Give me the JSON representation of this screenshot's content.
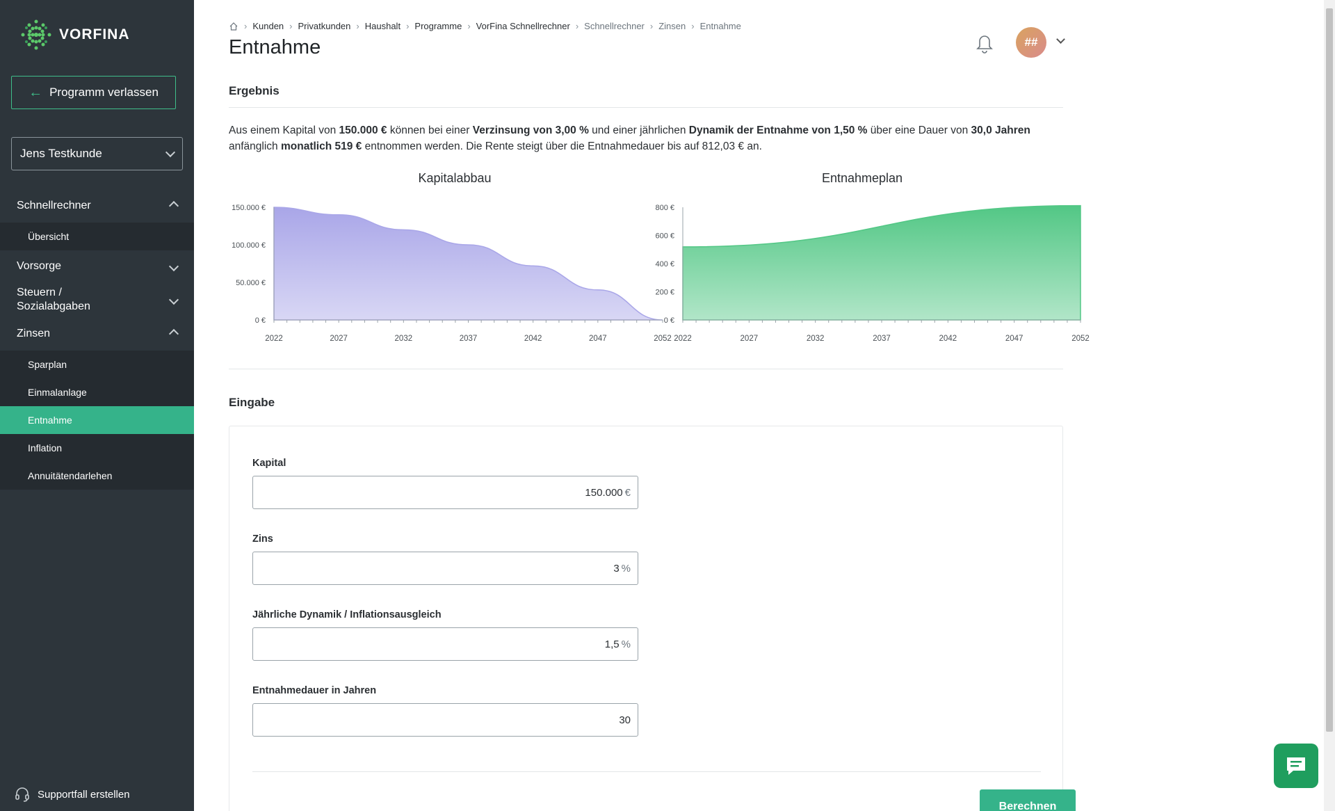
{
  "sidebar": {
    "logo": "VORFINA",
    "exit_label": "Programm verlassen",
    "client": "Jens Testkunde",
    "groups": {
      "schnellrechner": "Schnellrechner",
      "vorsorge": "Vorsorge",
      "steuern_line1": "Steuern /",
      "steuern_line2": "Sozialabgaben",
      "zinsen": "Zinsen"
    },
    "schnellrechner_items": [
      "Übersicht"
    ],
    "zinsen_items": [
      "Sparplan",
      "Einmalanlage",
      "Entnahme",
      "Inflation",
      "Annuitätendarlehen"
    ],
    "support": "Supportfall erstellen"
  },
  "header": {
    "breadcrumb": [
      "Kunden",
      "Privatkunden",
      "Haushalt",
      "Programme",
      "VorFina Schnellrechner",
      "Schnellrechner",
      "Zinsen",
      "Entnahme"
    ],
    "title": "Entnahme",
    "avatar": "##"
  },
  "result": {
    "section_title": "Ergebnis",
    "t1": "Aus einem Kapital von ",
    "b1": "150.000 €",
    "t2": " können bei einer ",
    "b2": "Verzinsung von 3,00 %",
    "t3": " und einer jährlichen ",
    "b3": "Dynamik der Entnahme von 1,50 %",
    "t4": " über eine Dauer von ",
    "b4": "30,0 Jahren",
    "t5": " anfänglich ",
    "b5": "monatlich 519 €",
    "t6": " entnommen werden. Die Rente steigt über die Entnahmedauer bis auf 812,03 € an."
  },
  "chart_data": [
    {
      "type": "area",
      "title": "Kapitalabbau",
      "x_ticks": [
        "2022",
        "2027",
        "2032",
        "2037",
        "2042",
        "2047",
        "2052"
      ],
      "y_ticks": [
        "0 €",
        "50.000 €",
        "100.000 €",
        "150.000 €"
      ],
      "ylim": [
        0,
        150000
      ],
      "x": [
        2022,
        2027,
        2032,
        2037,
        2042,
        2047,
        2052
      ],
      "values": [
        150000,
        140000,
        120000,
        100000,
        72000,
        40000,
        0
      ],
      "color": "#a9a6e8"
    },
    {
      "type": "area",
      "title": "Entnahmeplan",
      "x_ticks": [
        "2022",
        "2027",
        "2032",
        "2037",
        "2042",
        "2047",
        "2052"
      ],
      "y_ticks": [
        "0 €",
        "200 €",
        "400 €",
        "600 €",
        "800 €"
      ],
      "ylim": [
        0,
        800
      ],
      "x": [
        2022,
        2052
      ],
      "values": [
        519,
        812.03
      ],
      "color": "#52c785"
    }
  ],
  "input": {
    "section_title": "Eingabe",
    "fields": [
      {
        "label": "Kapital",
        "value": "150.000",
        "unit": "€"
      },
      {
        "label": "Zins",
        "value": "3",
        "unit": "%"
      },
      {
        "label": "Jährliche Dynamik / Inflationsausgleich",
        "value": "1,5",
        "unit": "%"
      },
      {
        "label": "Entnahmedauer in Jahren",
        "value": "30",
        "unit": ""
      }
    ],
    "submit": "Berechnen"
  }
}
